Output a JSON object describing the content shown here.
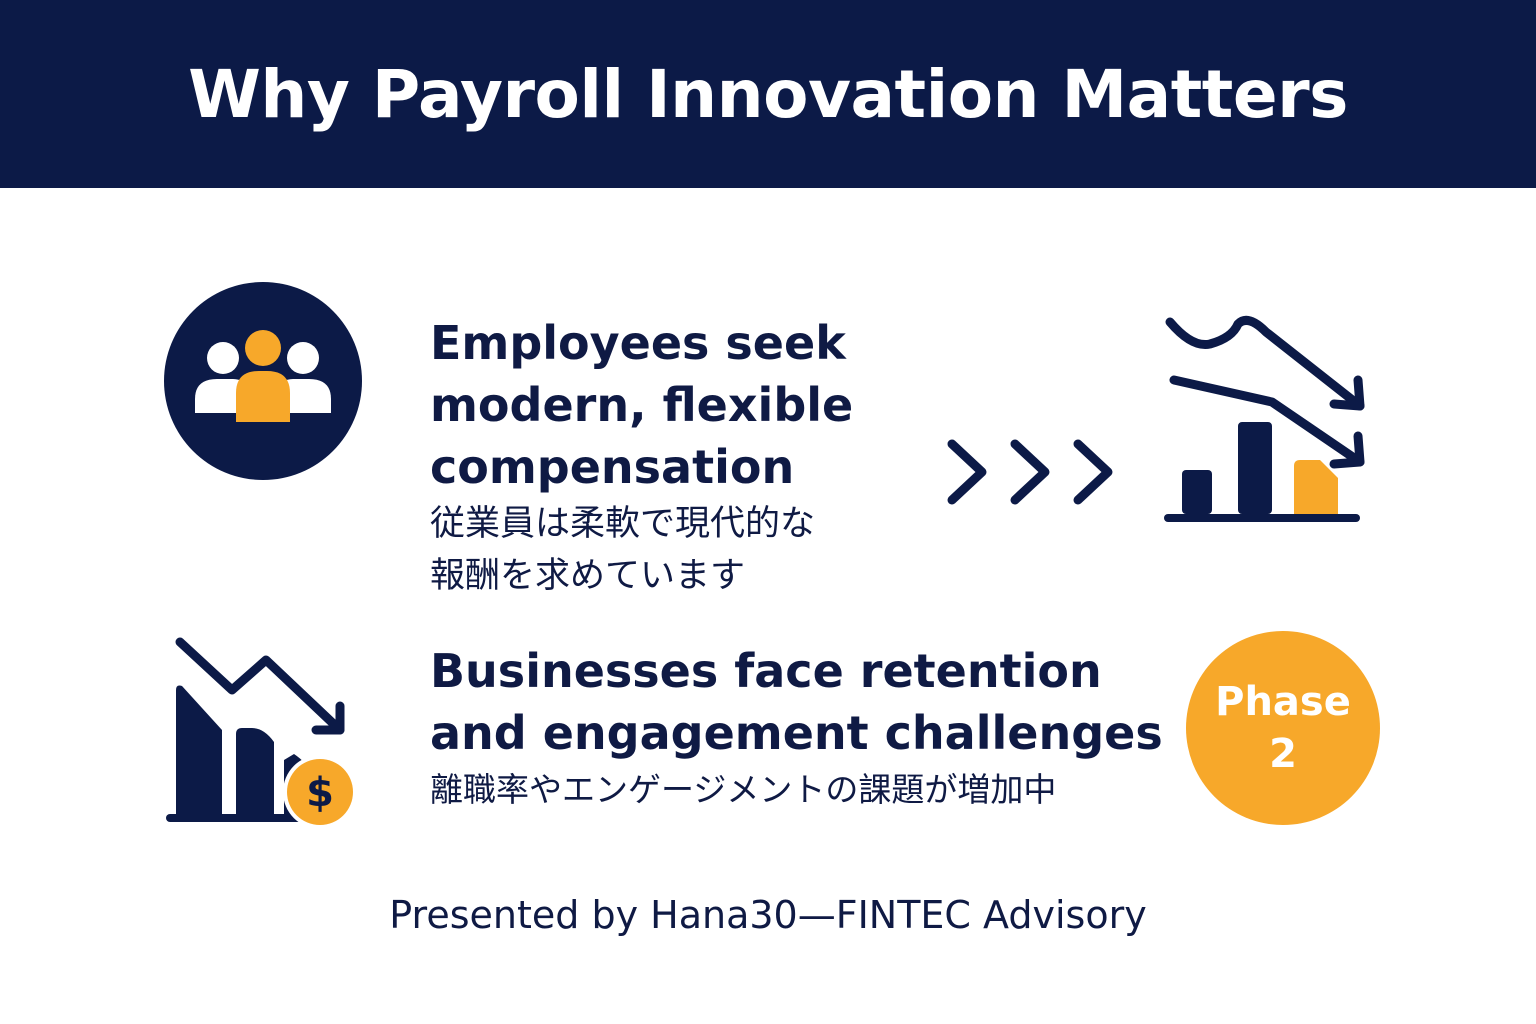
{
  "header": {
    "title": "Why Payroll Innovation Matters"
  },
  "point1": {
    "english_lines": [
      "Employees seek",
      "modern, flexible",
      "compensation"
    ],
    "japanese_lines": [
      "従業員は柔軟で現代的な",
      "報酬を求めています"
    ],
    "icon": "people-group-icon"
  },
  "point2": {
    "english_lines": [
      "Businesses face retention",
      "and engagement challenges"
    ],
    "japanese_lines": [
      "離職率やエンゲージメントの課題が増加中"
    ],
    "icon": "declining-chart-dollar-icon"
  },
  "flow_icons": [
    "triple-chevron-right-icon",
    "declining-bar-chart-icon"
  ],
  "phase_badge": {
    "line1": "Phase",
    "line2": "2"
  },
  "footer": {
    "text": "Presented by Hana30—FINTEC Advisory"
  },
  "colors": {
    "navy": "#0c1a47",
    "accent": "#f7a82a",
    "white": "#ffffff"
  }
}
